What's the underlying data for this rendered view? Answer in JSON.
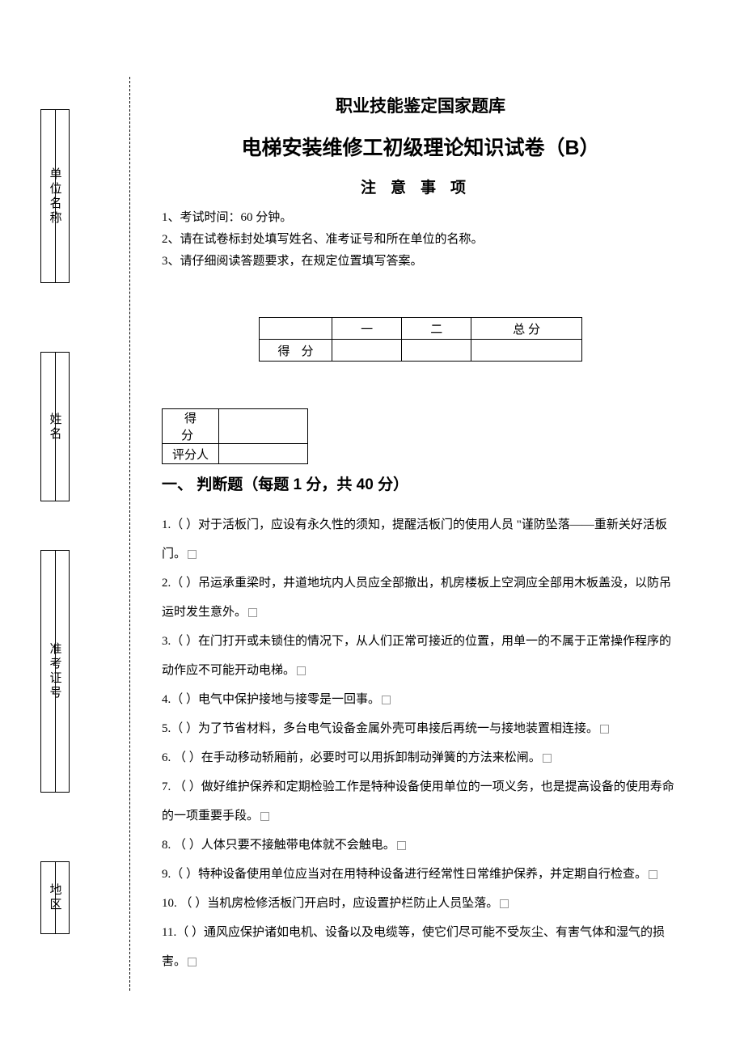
{
  "side_labels": {
    "unit": "单位名称",
    "name": "姓名",
    "exam_id": "准考证号",
    "region": "地区"
  },
  "header": {
    "super_title": "职业技能鉴定国家题库",
    "main_title": "电梯安装维修工初级理论知识试卷（B）",
    "notice_heading": "注意事项",
    "notices": [
      "1、考试时间：60 分钟。",
      "2、请在试卷标封处填写姓名、准考证号和所在单位的名称。",
      "3、请仔细阅读答题要求，在规定位置填写答案。"
    ]
  },
  "summary_table": {
    "col1": "一",
    "col2": "二",
    "col3": "总  分",
    "row_label": "得分"
  },
  "section_score": {
    "row1": "得分",
    "row2": "评分人"
  },
  "section1": {
    "title": "一、 判断题（每题 1 分，共 40 分）",
    "questions": [
      "1.（     ）对于活板门，应设有永久性的须知，提醒活板门的使用人员  \"谨防坠落——重新关好活板门。",
      "2.（     ）吊运承重梁时，井道地坑内人员应全部撤出，机房楼板上空洞应全部用木板盖没，以防吊运时发生意外。",
      "3.（     ）在门打开或未锁住的情况下，从人们正常可接近的位置，用单一的不属于正常操作程序的动作应不可能开动电梯。",
      "4.（     ）电气中保护接地与接零是一回事。",
      "5.（     ）为了节省材料，多台电气设备金属外壳可串接后再统一与接地装置相连接。",
      "6.  （     ）在手动移动轿厢前，必要时可以用拆卸制动弹簧的方法来松闸。",
      "7.  （     ）做好维护保养和定期检验工作是特种设备使用单位的一项义务，也是提高设备的使用寿命的一项重要手段。",
      "8.  （     ）人体只要不接触带电体就不会触电。",
      "9.（     ）特种设备使用单位应当对在用特种设备进行经常性日常维护保养，并定期自行检查。",
      "10.  （     ）当机房检修活板门开启时，应设置护栏防止人员坠落。",
      "11.（     ）通风应保护诸如电机、设备以及电缆等，使它们尽可能不受灰尘、有害气体和湿气的损害。"
    ]
  },
  "style": {
    "bg": "#ffffff",
    "text": "#000000",
    "border": "#000000",
    "body_font_size": 15,
    "title_font_size": 25,
    "line_height": 2.4
  }
}
